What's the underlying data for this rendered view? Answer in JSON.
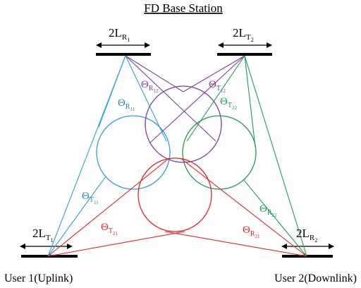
{
  "title": "FD Base Station",
  "users": {
    "uplink": "User 1(Uplink)",
    "downlink": "User 2(Downlink)"
  },
  "lengths": {
    "base_receive": {
      "prefix": "2L",
      "sub": "R",
      "subsub": "1"
    },
    "base_transmit": {
      "prefix": "2L",
      "sub": "T",
      "subsub": "2"
    },
    "user1": {
      "prefix": "2L",
      "sub": "T",
      "subsub": "1"
    },
    "user2": {
      "prefix": "2L",
      "sub": "R",
      "subsub": "2"
    }
  },
  "angles": {
    "r12": {
      "symbol": "Θ",
      "sub": "R",
      "subsub": "12"
    },
    "t12": {
      "symbol": "Θ",
      "sub": "T",
      "subsub": "12"
    },
    "r11": {
      "symbol": "Θ",
      "sub": "R",
      "subsub": "11"
    },
    "t22": {
      "symbol": "Θ",
      "sub": "T",
      "subsub": "22"
    },
    "t11": {
      "symbol": "Θ",
      "sub": "T",
      "subsub": "11"
    },
    "r22": {
      "symbol": "Θ",
      "sub": "R",
      "subsub": "22"
    },
    "t21": {
      "symbol": "Θ",
      "sub": "T",
      "subsub": "21"
    },
    "r21": {
      "symbol": "Θ",
      "sub": "R",
      "subsub": "21"
    }
  },
  "colors": {
    "blue": "#2aa3dc",
    "purple": "#7b3fa3",
    "green": "#1e9e55",
    "red": "#e0262b",
    "label_blue": "#2f7fb8",
    "black": "#000000"
  }
}
